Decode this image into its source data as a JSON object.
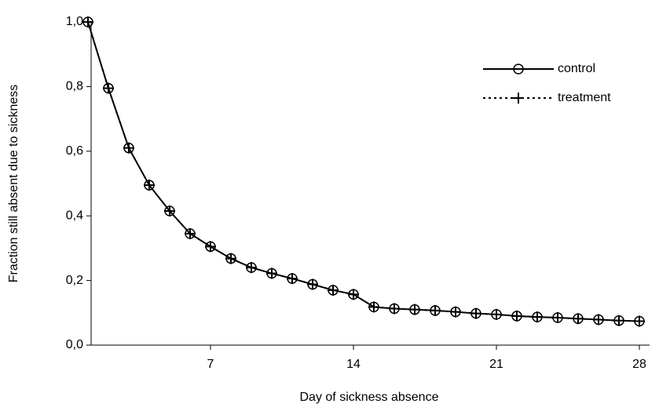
{
  "chart_data": {
    "type": "line",
    "x_label": "Day of sickness absence",
    "y_label": "Fraction still absent due to sickness",
    "x": [
      1,
      2,
      3,
      4,
      5,
      6,
      7,
      8,
      9,
      10,
      11,
      12,
      13,
      14,
      15,
      16,
      17,
      18,
      19,
      20,
      21,
      22,
      23,
      24,
      25,
      26,
      27,
      28
    ],
    "series": [
      {
        "name": "control",
        "color": "#000000",
        "dash": false,
        "marker": "circle",
        "values": [
          1.0,
          0.795,
          0.61,
          0.495,
          0.415,
          0.345,
          0.305,
          0.268,
          0.24,
          0.222,
          0.206,
          0.188,
          0.17,
          0.157,
          0.118,
          0.113,
          0.11,
          0.107,
          0.103,
          0.098,
          0.095,
          0.09,
          0.087,
          0.085,
          0.082,
          0.079,
          0.076,
          0.074
        ]
      },
      {
        "name": "treatment",
        "color": "#000000",
        "dash": true,
        "marker": "plus",
        "values": [
          1.0,
          0.795,
          0.61,
          0.495,
          0.415,
          0.345,
          0.305,
          0.268,
          0.24,
          0.222,
          0.206,
          0.188,
          0.17,
          0.157,
          0.118,
          0.113,
          0.11,
          0.107,
          0.103,
          0.098,
          0.095,
          0.09,
          0.087,
          0.085,
          0.082,
          0.079,
          0.076,
          0.074
        ]
      }
    ],
    "xlim": [
      1,
      28.5
    ],
    "xticks": [
      7,
      14,
      21,
      28
    ],
    "ylim": [
      0,
      1
    ],
    "yticks": [
      {
        "value": 0,
        "label": "0,0"
      },
      {
        "value": 0.2,
        "label": "0,2"
      },
      {
        "value": 0.4,
        "label": "0,4"
      },
      {
        "value": 0.6,
        "label": "0,6"
      },
      {
        "value": 0.8,
        "label": "0,8"
      },
      {
        "value": 1,
        "label": "1,0"
      }
    ],
    "legend": "top-right"
  }
}
